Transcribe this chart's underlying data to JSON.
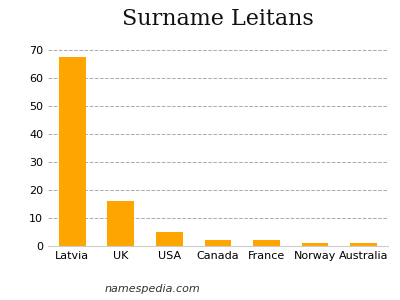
{
  "title": "Surname Leitans",
  "categories": [
    "Latvia",
    "UK",
    "USA",
    "Canada",
    "France",
    "Norway",
    "Australia"
  ],
  "values": [
    67.5,
    16,
    5,
    2,
    2,
    1,
    1
  ],
  "bar_color": "#FFA500",
  "ylim": [
    0,
    75
  ],
  "yticks": [
    0,
    10,
    20,
    30,
    40,
    50,
    60,
    70
  ],
  "title_fontsize": 16,
  "tick_fontsize": 8,
  "footer_text": "namespedia.com",
  "footer_fontsize": 8,
  "background_color": "#ffffff",
  "grid_color": "#aaaaaa",
  "grid_linestyle": "--"
}
